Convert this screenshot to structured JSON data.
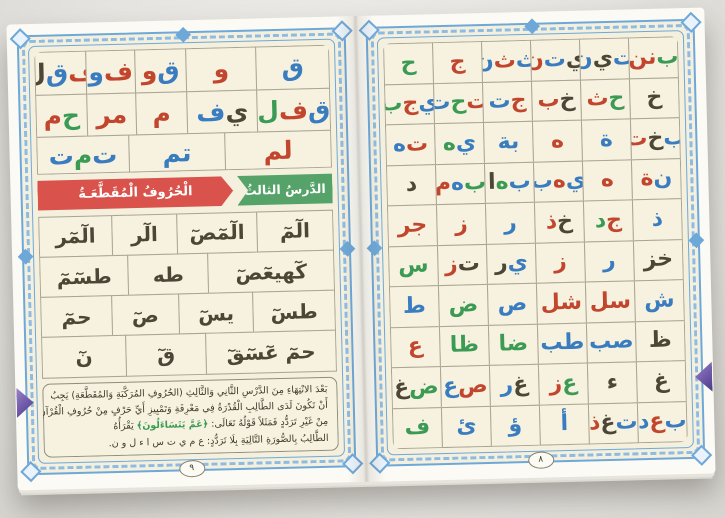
{
  "colors": {
    "r": "#c2462e",
    "b": "#3a7cc0",
    "g": "#3b9b55",
    "d": "#4b4635",
    "banner_red": "#d9534c",
    "banner_green": "#55a368",
    "frame_blue": "#6ea8d9",
    "paper": "#f4f0dd",
    "bookmark_purple": "#6f58a8"
  },
  "left_page": {
    "page_number": "٩",
    "top_grid": {
      "rows": [
        {
          "f": 1,
          "cells": [
            {
              "f": 1.5,
              "s": [
                [
                  "ق",
                  "b"
                ]
              ]
            },
            {
              "f": 1.45,
              "s": [
                [
                  "و",
                  "r"
                ]
              ]
            },
            {
              "f": 1.05,
              "s": [
                [
                  "ق",
                  "b"
                ],
                [
                  "و",
                  "r"
                ]
              ]
            },
            {
              "f": 1.0,
              "s": [
                [
                  "ف",
                  "r"
                ],
                [
                  "و",
                  "b"
                ]
              ]
            },
            {
              "f": 1.05,
              "s": [
                [
                  "ف",
                  "r"
                ],
                [
                  "ق",
                  "b"
                ],
                [
                  "ل",
                  "d"
                ]
              ]
            }
          ]
        },
        {
          "f": 1,
          "cells": [
            {
              "f": 1.5,
              "s": [
                [
                  "ق",
                  "b"
                ],
                [
                  "ف",
                  "r"
                ],
                [
                  "ل",
                  "g"
                ]
              ]
            },
            {
              "f": 1.45,
              "s": [
                [
                  "ي",
                  "d"
                ],
                [
                  "ف",
                  "b"
                ]
              ]
            },
            {
              "f": 1.05,
              "s": [
                [
                  "م",
                  "r"
                ]
              ]
            },
            {
              "f": 1.0,
              "s": [
                [
                  "مر",
                  "r"
                ]
              ]
            },
            {
              "f": 1.05,
              "s": [
                [
                  "ح",
                  "g"
                ],
                [
                  "م",
                  "r"
                ]
              ]
            }
          ]
        },
        {
          "f": 0.85,
          "cells": [
            {
              "f": 1.1,
              "s": [
                [
                  "لم",
                  "r"
                ]
              ]
            },
            {
              "f": 1.0,
              "s": [
                [
                  "تم",
                  "b"
                ]
              ]
            },
            {
              "f": 0.95,
              "s": [
                [
                  "ت",
                  "b"
                ],
                [
                  "م",
                  "g"
                ],
                [
                  "ت",
                  "b"
                ]
              ]
            }
          ]
        }
      ]
    },
    "banner": {
      "lesson_label": "الدَّرسُ الثالثُ",
      "title": "الْحُرُوفُ الْمُقَطَّعَـةُ"
    },
    "muqattaat_grid": {
      "rows": [
        {
          "f": 1,
          "cells": [
            {
              "f": 1.05,
              "s": [
                [
                  "الٓمٓ",
                  "d"
                ]
              ]
            },
            {
              "f": 1.1,
              "s": [
                [
                  "الٓمٓصٓ",
                  "d"
                ]
              ]
            },
            {
              "f": 0.9,
              "s": [
                [
                  "الٓر",
                  "d"
                ]
              ]
            },
            {
              "f": 1.0,
              "s": [
                [
                  "الٓمٓر",
                  "d"
                ]
              ]
            }
          ]
        },
        {
          "f": 1,
          "cells": [
            {
              "f": 1.5,
              "s": [
                [
                  "كٓهيعٓصٓ",
                  "d"
                ]
              ]
            },
            {
              "f": 0.95,
              "s": [
                [
                  "طه",
                  "d"
                ]
              ]
            },
            {
              "f": 1.05,
              "s": [
                [
                  "طسٓمٓ",
                  "d"
                ]
              ]
            }
          ]
        },
        {
          "f": 1,
          "cells": [
            {
              "f": 1.1,
              "s": [
                [
                  "طسٓ",
                  "d"
                ]
              ]
            },
            {
              "f": 1.0,
              "s": [
                [
                  "يسٓ",
                  "d"
                ]
              ]
            },
            {
              "f": 0.9,
              "s": [
                [
                  "صٓ",
                  "d"
                ]
              ]
            },
            {
              "f": 0.95,
              "s": [
                [
                  "حمٓ",
                  "d"
                ]
              ]
            }
          ]
        },
        {
          "f": 1,
          "cells": [
            {
              "f": 1.55,
              "s": [
                [
                  "حمٓ عٓسٓقٓ",
                  "d"
                ]
              ]
            },
            {
              "f": 0.95,
              "s": [
                [
                  "قٓ",
                  "d"
                ]
              ]
            },
            {
              "f": 1.0,
              "s": [
                [
                  "نٓ",
                  "d"
                ]
              ]
            }
          ]
        }
      ]
    },
    "note_lines": [
      [
        [
          "بَعْدَ الانْتِهَاءِ مِنَ الدَّرْسِ الثَّانِي وَالثَّالِثِ (الحُرُوفِ المُرَكَّبَةِ وَالمُقَطَّعَةِ) يَجِبُ",
          "d"
        ]
      ],
      [
        [
          "أَنْ تَكُونَ لَدَى الطَّالِبِ الْقُدْرَةُ فِي مَعْرِفَةِ وَتَمْيِيزِ أَيِّ حَرْفٍ مِنْ حُرُوفِ الْقُرْآنِ",
          "d"
        ]
      ],
      [
        [
          "مِنْ غَيْرِ تَرَدُّدٍ فَمَثَلاً قَوْلُهُ تَعَالَى: ",
          "d"
        ],
        [
          "﴿عَمَّ يَتَسَاءَلُونَ﴾",
          "g"
        ],
        [
          " يَقْرَأُهُ",
          "d"
        ]
      ],
      [
        [
          "الطَّالِبُ بِالصُّورَةِ التَّالِيَةِ بِلَا تَرَدُّدٍ: ع م ي ت س ا ء ل و ن.",
          "d"
        ]
      ]
    ]
  },
  "right_page": {
    "page_number": "٨",
    "grid": {
      "rows": [
        {
          "cells": [
            {
              "s": [
                [
                  "ب",
                  "g"
                ],
                [
                  "نن",
                  "r"
                ]
              ]
            },
            {
              "s": [
                [
                  "ت",
                  "b"
                ],
                [
                  "ي",
                  "d"
                ],
                [
                  "ن",
                  "b"
                ]
              ]
            },
            {
              "s": [
                [
                  "ي",
                  "d"
                ],
                [
                  "ت",
                  "b"
                ],
                [
                  "ن",
                  "r"
                ]
              ]
            },
            {
              "s": [
                [
                  "ث",
                  "b"
                ],
                [
                  "ث",
                  "r"
                ],
                [
                  "ن",
                  "b"
                ]
              ]
            },
            {
              "s": [
                [
                  "ج",
                  "r"
                ]
              ]
            },
            {
              "s": [
                [
                  "ح",
                  "g"
                ]
              ]
            }
          ]
        },
        {
          "cells": [
            {
              "s": [
                [
                  "خ",
                  "d"
                ]
              ]
            },
            {
              "s": [
                [
                  "ح",
                  "g"
                ],
                [
                  "ث",
                  "r"
                ]
              ]
            },
            {
              "s": [
                [
                  "خ",
                  "d"
                ],
                [
                  "ب",
                  "r"
                ]
              ]
            },
            {
              "s": [
                [
                  "ج",
                  "r"
                ],
                [
                  "ت",
                  "b"
                ]
              ]
            },
            {
              "s": [
                [
                  "ت",
                  "r"
                ],
                [
                  "ح",
                  "g"
                ],
                [
                  "ت",
                  "b"
                ]
              ]
            },
            {
              "s": [
                [
                  "ي",
                  "b"
                ],
                [
                  "ج",
                  "r"
                ],
                [
                  "ب",
                  "g"
                ]
              ]
            }
          ]
        },
        {
          "cells": [
            {
              "s": [
                [
                  "ب",
                  "b"
                ],
                [
                  "خ",
                  "d"
                ],
                [
                  "ت",
                  "r"
                ]
              ]
            },
            {
              "s": [
                [
                  "ة",
                  "b"
                ]
              ]
            },
            {
              "s": [
                [
                  "ه",
                  "r"
                ]
              ]
            },
            {
              "s": [
                [
                  "بة",
                  "b"
                ]
              ]
            },
            {
              "s": [
                [
                  "ي",
                  "b"
                ],
                [
                  "ه",
                  "g"
                ]
              ]
            },
            {
              "s": [
                [
                  "ت",
                  "r"
                ],
                [
                  "ه",
                  "b"
                ]
              ]
            }
          ]
        },
        {
          "cells": [
            {
              "s": [
                [
                  "ن",
                  "b"
                ],
                [
                  "ة",
                  "r"
                ]
              ]
            },
            {
              "s": [
                [
                  "ه",
                  "r"
                ]
              ]
            },
            {
              "s": [
                [
                  "ي",
                  "b"
                ],
                [
                  "ه",
                  "r"
                ],
                [
                  "ب",
                  "b"
                ]
              ]
            },
            {
              "s": [
                [
                  "ب",
                  "b"
                ],
                [
                  "ه",
                  "g"
                ],
                [
                  "ا",
                  "d"
                ]
              ]
            },
            {
              "s": [
                [
                  "ب",
                  "g"
                ],
                [
                  "ه",
                  "b"
                ],
                [
                  "م",
                  "r"
                ]
              ]
            },
            {
              "s": [
                [
                  "د",
                  "d"
                ]
              ]
            }
          ]
        },
        {
          "cells": [
            {
              "s": [
                [
                  "ذ",
                  "b"
                ]
              ]
            },
            {
              "s": [
                [
                  "ج",
                  "r"
                ],
                [
                  "د",
                  "g"
                ]
              ]
            },
            {
              "s": [
                [
                  "خ",
                  "d"
                ],
                [
                  "ذ",
                  "r"
                ]
              ]
            },
            {
              "s": [
                [
                  "ر",
                  "b"
                ]
              ]
            },
            {
              "s": [
                [
                  "ز",
                  "r"
                ]
              ]
            },
            {
              "s": [
                [
                  "جر",
                  "r"
                ]
              ]
            }
          ]
        },
        {
          "cells": [
            {
              "s": [
                [
                  "خز",
                  "d"
                ]
              ]
            },
            {
              "s": [
                [
                  "ر",
                  "b"
                ]
              ]
            },
            {
              "s": [
                [
                  "ز",
                  "r"
                ]
              ]
            },
            {
              "s": [
                [
                  "ي",
                  "b"
                ],
                [
                  "ر",
                  "d"
                ]
              ]
            },
            {
              "s": [
                [
                  "ت",
                  "d"
                ],
                [
                  "ز",
                  "r"
                ]
              ]
            },
            {
              "s": [
                [
                  "س",
                  "g"
                ]
              ]
            }
          ]
        },
        {
          "cells": [
            {
              "s": [
                [
                  "ش",
                  "b"
                ]
              ]
            },
            {
              "s": [
                [
                  "سل",
                  "r"
                ]
              ]
            },
            {
              "s": [
                [
                  "شل",
                  "r"
                ]
              ]
            },
            {
              "s": [
                [
                  "ص",
                  "b"
                ]
              ]
            },
            {
              "s": [
                [
                  "ض",
                  "g"
                ]
              ]
            },
            {
              "s": [
                [
                  "ط",
                  "b"
                ]
              ]
            }
          ]
        },
        {
          "cells": [
            {
              "s": [
                [
                  "ظ",
                  "d"
                ]
              ]
            },
            {
              "s": [
                [
                  "صب",
                  "b"
                ]
              ]
            },
            {
              "s": [
                [
                  "طب",
                  "b"
                ]
              ]
            },
            {
              "s": [
                [
                  "ضا",
                  "g"
                ]
              ]
            },
            {
              "s": [
                [
                  "ظا",
                  "g"
                ]
              ]
            },
            {
              "s": [
                [
                  "ع",
                  "r"
                ]
              ]
            }
          ]
        },
        {
          "cells": [
            {
              "s": [
                [
                  "غ",
                  "d"
                ]
              ]
            },
            {
              "s": [
                [
                  "ء",
                  "d"
                ]
              ]
            },
            {
              "s": [
                [
                  "ع",
                  "g"
                ],
                [
                  "ز",
                  "r"
                ]
              ]
            },
            {
              "s": [
                [
                  "غ",
                  "d"
                ],
                [
                  "ر",
                  "b"
                ]
              ]
            },
            {
              "s": [
                [
                  "ص",
                  "r"
                ],
                [
                  "ع",
                  "b"
                ]
              ]
            },
            {
              "s": [
                [
                  "ض",
                  "g"
                ],
                [
                  "غ",
                  "d"
                ]
              ]
            }
          ]
        },
        {
          "cells": [
            {
              "s": [
                [
                  "ب",
                  "b"
                ],
                [
                  "ع",
                  "r"
                ],
                [
                  "د",
                  "b"
                ]
              ]
            },
            {
              "s": [
                [
                  "ت",
                  "b"
                ],
                [
                  "غ",
                  "d"
                ],
                [
                  "ذ",
                  "r"
                ]
              ]
            },
            {
              "s": [
                [
                  "أ",
                  "b"
                ]
              ]
            },
            {
              "s": [
                [
                  "ؤ",
                  "b"
                ]
              ]
            },
            {
              "s": [
                [
                  "ئ",
                  "b"
                ]
              ]
            },
            {
              "s": [
                [
                  "ف",
                  "g"
                ]
              ]
            }
          ]
        }
      ]
    }
  }
}
